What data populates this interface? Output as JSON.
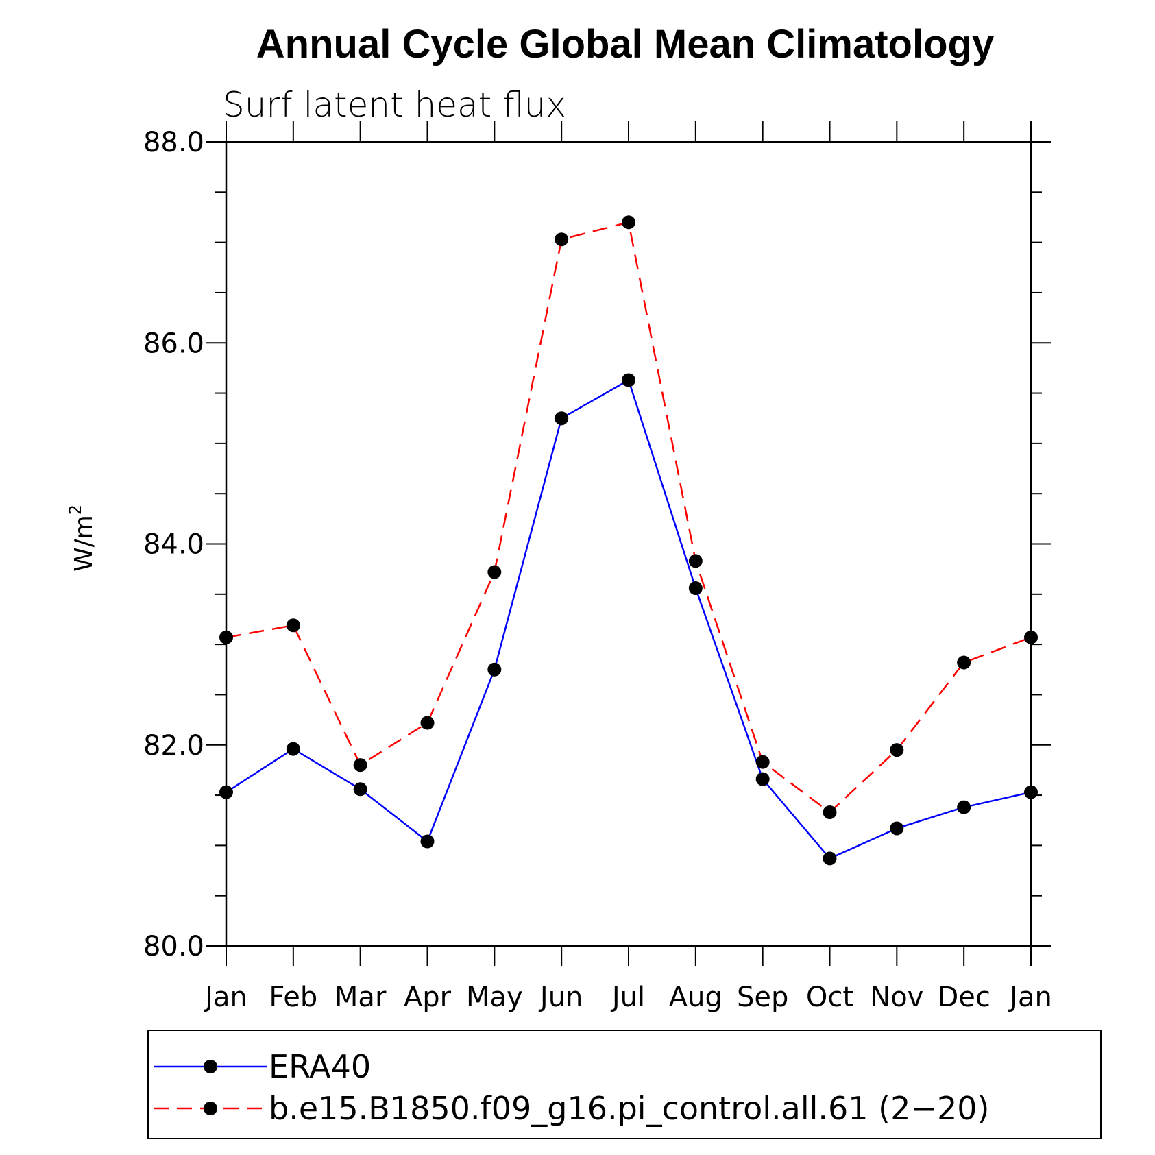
{
  "chart_data": {
    "type": "line",
    "title": "Annual Cycle Global Mean Climatology",
    "subtitle": "Surf latent heat flux",
    "ylabel": "W/m",
    "ylabel_superscript": "2",
    "xlabel": "",
    "categories": [
      "Jan",
      "Feb",
      "Mar",
      "Apr",
      "May",
      "Jun",
      "Jul",
      "Aug",
      "Sep",
      "Oct",
      "Nov",
      "Dec",
      "Jan"
    ],
    "ylim": [
      80.0,
      88.0
    ],
    "yticks": [
      "80.0",
      "82.0",
      "84.0",
      "86.0",
      "88.0"
    ],
    "ytick_values": [
      80,
      82,
      84,
      86,
      88
    ],
    "series": [
      {
        "name": "ERA40",
        "color": "#0000ff",
        "dash": "solid",
        "values": [
          81.53,
          81.96,
          81.56,
          81.04,
          82.75,
          85.25,
          85.63,
          83.56,
          81.66,
          80.87,
          81.17,
          81.38,
          81.53
        ]
      },
      {
        "name": "b.e15.B1850.f09_g16.pi_control.all.61 (2−20)",
        "color": "#ff0000",
        "dash": "dashed",
        "values": [
          83.07,
          83.19,
          81.8,
          82.22,
          83.72,
          87.03,
          87.2,
          83.83,
          81.83,
          81.33,
          81.95,
          82.82,
          83.07
        ]
      }
    ],
    "legend_position": "bottom"
  }
}
